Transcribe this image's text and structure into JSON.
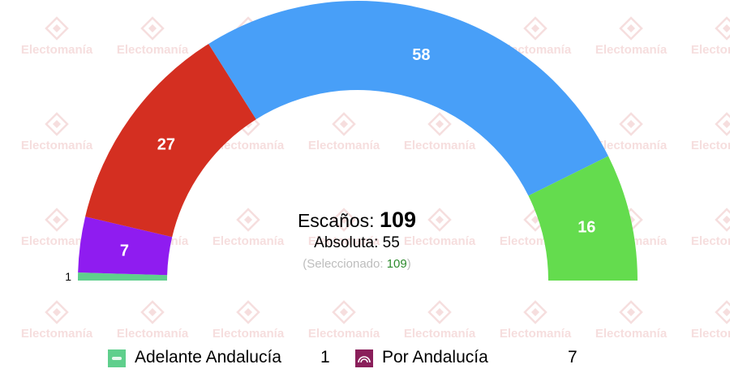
{
  "watermark": {
    "text": "Electomanía"
  },
  "chart_data": {
    "type": "parliament-hemicycle",
    "series": [
      {
        "name": "Adelante Andalucía",
        "value": 1,
        "color": "#5fcf8c"
      },
      {
        "name": "Por Andalucía",
        "value": 7,
        "color": "#8f1cf0"
      },
      {
        "name": "",
        "value": 27,
        "color": "#d42f21"
      },
      {
        "name": "",
        "value": 58,
        "color": "#489ff8"
      },
      {
        "name": "",
        "value": 16,
        "color": "#64dc4e"
      }
    ],
    "total": 109
  },
  "center": {
    "seats_label": "Escaños:",
    "seats_value": "109",
    "majority_text": "Absoluta: 55",
    "selected_prefix": "(Seleccionado:",
    "selected_value": "109",
    "selected_suffix": ")"
  },
  "legend": [
    {
      "name": "Adelante Andalucía",
      "value": "1",
      "color": "#5fcf8c",
      "icon": "adelante-andalucia-logo"
    },
    {
      "name": "Por Andalucía",
      "value": "7",
      "color": "#8a1f5a",
      "icon": "por-andalucia-logo"
    }
  ]
}
